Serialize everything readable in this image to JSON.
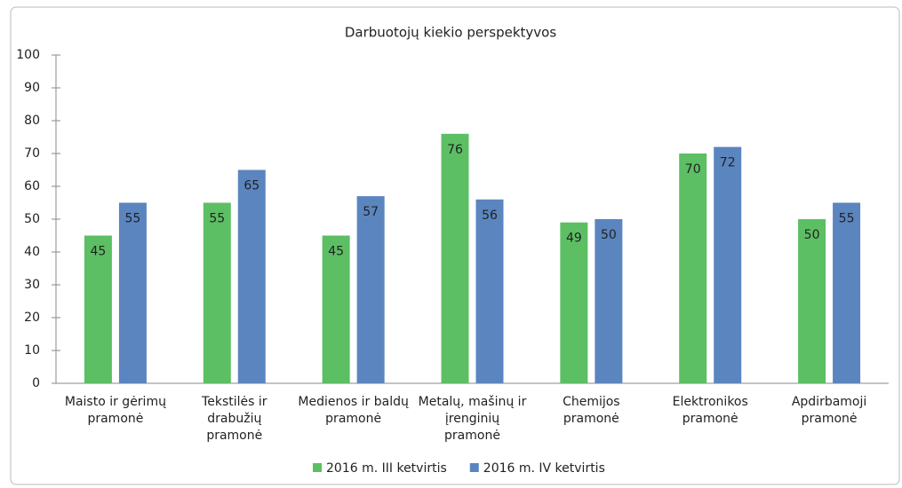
{
  "chart_data": {
    "type": "bar",
    "title": "Darbuotojų kiekio perspektyvos",
    "categories": [
      "Maisto ir gėrimų pramonė",
      "Tekstilės ir drabužių pramonė",
      "Medienos ir baldų pramonė",
      "Metalų, mašinų ir įrenginių pramonė",
      "Chemijos pramonė",
      "Elektronikos pramonė",
      "Apdirbamoji pramonė"
    ],
    "series": [
      {
        "name": "2016 m. III ketvirtis",
        "color": "#5cbf63",
        "values": [
          45,
          55,
          45,
          76,
          49,
          70,
          50
        ]
      },
      {
        "name": "2016 m. IV ketvirtis",
        "color": "#5b85bf",
        "values": [
          55,
          65,
          57,
          56,
          50,
          72,
          55
        ]
      }
    ],
    "ylim": [
      0,
      100
    ],
    "yticks": [
      0,
      10,
      20,
      30,
      40,
      50,
      60,
      70,
      80,
      90,
      100
    ],
    "legend": "bottom"
  }
}
